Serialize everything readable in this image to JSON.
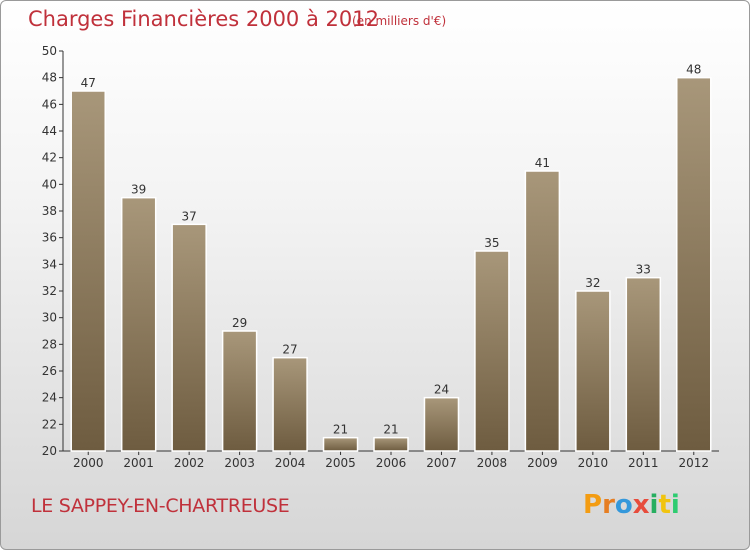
{
  "header": {
    "title": "Charges Financières 2000 à 2012",
    "subtitle": "(en milliers d'€)"
  },
  "footer": {
    "commune": "LE SAPPEY-EN-CHARTREUSE",
    "logo": {
      "letters": [
        "P",
        "r",
        "o",
        "x",
        "i",
        "t",
        "i"
      ],
      "colors": [
        "#f39c12",
        "#e67e22",
        "#3498db",
        "#e74c3c",
        "#27ae60",
        "#f1c40f",
        "#2ecc71"
      ]
    }
  },
  "chart_data": {
    "type": "bar",
    "categories": [
      "2000",
      "2001",
      "2002",
      "2003",
      "2004",
      "2005",
      "2006",
      "2007",
      "2008",
      "2009",
      "2010",
      "2011",
      "2012"
    ],
    "values": [
      47,
      39,
      37,
      29,
      27,
      21,
      21,
      24,
      35,
      41,
      32,
      33,
      48
    ],
    "data_labels": [
      "47",
      "39",
      "37",
      "29",
      "27",
      "21",
      "21",
      "24",
      "35",
      "41",
      "32",
      "33",
      "48"
    ],
    "ylim": [
      20,
      50
    ],
    "yticks": [
      20,
      22,
      24,
      26,
      28,
      30,
      32,
      34,
      36,
      38,
      40,
      42,
      44,
      46,
      48,
      50
    ],
    "grid": false,
    "colors": {
      "bar_light": "#a8977a",
      "bar_dark": "#6e5c40",
      "axis": "#333333"
    }
  }
}
